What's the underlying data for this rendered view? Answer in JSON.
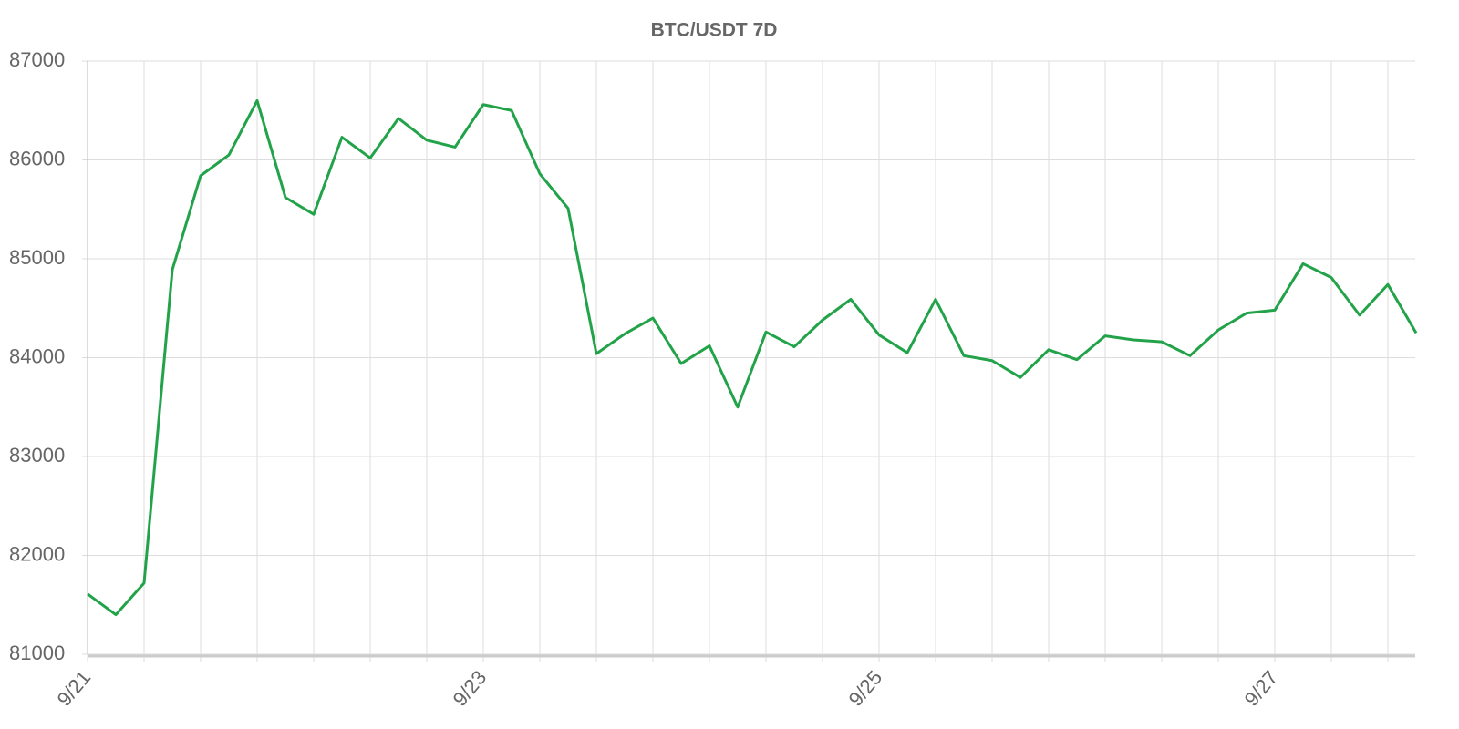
{
  "chart_data": {
    "type": "line",
    "title": "BTC/USDT 7D",
    "categories": [
      "9/21",
      null,
      null,
      null,
      null,
      null,
      null,
      null,
      null,
      null,
      null,
      null,
      null,
      null,
      "9/23",
      null,
      null,
      null,
      null,
      null,
      null,
      null,
      null,
      null,
      null,
      null,
      null,
      null,
      "9/25",
      null,
      null,
      null,
      null,
      null,
      null,
      null,
      null,
      null,
      null,
      null,
      null,
      null,
      "9/27",
      null,
      null,
      null,
      null,
      null
    ],
    "series": [
      {
        "color": "#22a34a",
        "values": [
          81610,
          81400,
          81720,
          84890,
          85840,
          86050,
          86600,
          85620,
          85450,
          86230,
          86020,
          86420,
          86200,
          86130,
          86560,
          86500,
          85860,
          85510,
          84040,
          84240,
          84400,
          83940,
          84120,
          83500,
          84260,
          84110,
          84380,
          84590,
          84230,
          84050,
          84590,
          84020,
          83970,
          83800,
          84080,
          83980,
          84220,
          84180,
          84160,
          84020,
          84280,
          84450,
          84480,
          84950,
          84810,
          84430,
          84740,
          84250
        ]
      }
    ],
    "ylim": [
      81000,
      87000
    ],
    "yticks": [
      81000,
      82000,
      83000,
      84000,
      85000,
      86000,
      87000
    ],
    "grid": true
  }
}
